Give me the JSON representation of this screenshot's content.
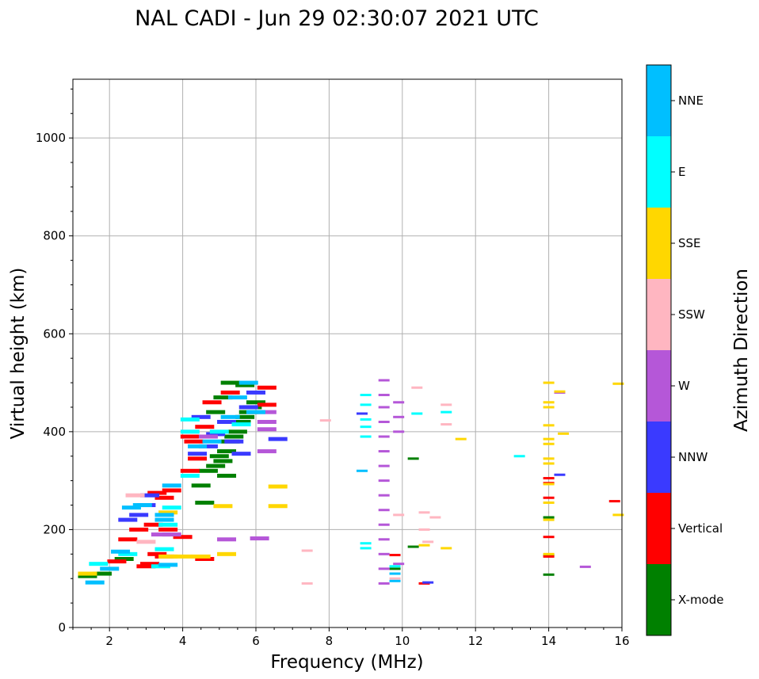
{
  "chart_data": {
    "type": "scatter",
    "title": "NAL CADI - Jun 29 02:30:07 2021 UTC",
    "xlabel": "Frequency (MHz)",
    "ylabel": "Virtual height (km)",
    "xlim": [
      1,
      16
    ],
    "ylim": [
      0,
      1120
    ],
    "x_ticks": [
      2,
      4,
      6,
      8,
      10,
      12,
      14,
      16
    ],
    "y_ticks": [
      0,
      200,
      400,
      600,
      800,
      1000
    ],
    "grid": true,
    "colorbar": {
      "label": "Azimuth Direction",
      "categories": [
        {
          "name": "X-mode",
          "color": "#008000"
        },
        {
          "name": "Vertical",
          "color": "#ff0000"
        },
        {
          "name": "NNW",
          "color": "#3a3aff"
        },
        {
          "name": "W",
          "color": "#b557d8"
        },
        {
          "name": "SSW",
          "color": "#ffb6c1"
        },
        {
          "name": "SSE",
          "color": "#ffd700"
        },
        {
          "name": "E",
          "color": "#00ffff"
        },
        {
          "name": "NNE",
          "color": "#00bfff"
        }
      ]
    },
    "series": [
      {
        "name": "X-mode",
        "points": [
          [
            1.4,
            105
          ],
          [
            1.8,
            110
          ],
          [
            2.4,
            140
          ],
          [
            4.5,
            290
          ],
          [
            4.7,
            320
          ],
          [
            4.9,
            330
          ],
          [
            5.0,
            350
          ],
          [
            5.1,
            340
          ],
          [
            5.2,
            360
          ],
          [
            5.3,
            380
          ],
          [
            5.4,
            390
          ],
          [
            5.5,
            400
          ],
          [
            5.6,
            420
          ],
          [
            5.7,
            430
          ],
          [
            5.8,
            440
          ],
          [
            5.9,
            450
          ],
          [
            6.0,
            460
          ],
          [
            4.9,
            440
          ],
          [
            5.1,
            470
          ],
          [
            5.3,
            500
          ],
          [
            5.7,
            495
          ],
          [
            10.3,
            345
          ],
          [
            10.3,
            165
          ],
          [
            9.8,
            120
          ],
          [
            14.0,
            225
          ],
          [
            14.0,
            108
          ],
          [
            14.0,
            148
          ],
          [
            4.6,
            255
          ],
          [
            5.2,
            310
          ]
        ]
      },
      {
        "name": "Vertical",
        "points": [
          [
            2.2,
            135
          ],
          [
            2.5,
            180
          ],
          [
            2.8,
            200
          ],
          [
            3.0,
            125
          ],
          [
            3.1,
            130
          ],
          [
            3.2,
            210
          ],
          [
            3.3,
            275
          ],
          [
            3.5,
            145
          ],
          [
            3.5,
            265
          ],
          [
            3.6,
            200
          ],
          [
            3.7,
            280
          ],
          [
            4.2,
            320
          ],
          [
            4.2,
            390
          ],
          [
            4.3,
            380
          ],
          [
            4.4,
            345
          ],
          [
            4.6,
            410
          ],
          [
            4.8,
            460
          ],
          [
            5.3,
            480
          ],
          [
            6.3,
            490
          ],
          [
            6.3,
            455
          ],
          [
            4.6,
            140
          ],
          [
            14.0,
            305
          ],
          [
            14.0,
            265
          ],
          [
            14.0,
            185
          ],
          [
            14.0,
            145
          ],
          [
            14.0,
            295
          ],
          [
            15.8,
            258
          ],
          [
            9.8,
            148
          ],
          [
            10.6,
            90
          ],
          [
            3.3,
            150
          ],
          [
            4.0,
            185
          ]
        ]
      },
      {
        "name": "NNW",
        "points": [
          [
            2.5,
            220
          ],
          [
            2.8,
            230
          ],
          [
            3.0,
            250
          ],
          [
            4.4,
            355
          ],
          [
            4.7,
            370
          ],
          [
            4.9,
            395
          ],
          [
            5.2,
            420
          ],
          [
            5.4,
            380
          ],
          [
            5.6,
            355
          ],
          [
            5.8,
            450
          ],
          [
            6.0,
            480
          ],
          [
            6.6,
            385
          ],
          [
            8.9,
            437
          ],
          [
            10.7,
            92
          ],
          [
            3.1,
            270
          ],
          [
            14.3,
            312
          ],
          [
            4.5,
            430
          ]
        ]
      },
      {
        "name": "W",
        "points": [
          [
            3.4,
            190
          ],
          [
            3.7,
            190
          ],
          [
            6.3,
            440
          ],
          [
            6.3,
            420
          ],
          [
            6.3,
            405
          ],
          [
            6.3,
            360
          ],
          [
            9.5,
            505
          ],
          [
            9.5,
            475
          ],
          [
            9.5,
            450
          ],
          [
            9.5,
            420
          ],
          [
            9.5,
            390
          ],
          [
            9.5,
            360
          ],
          [
            9.5,
            330
          ],
          [
            9.5,
            300
          ],
          [
            9.5,
            270
          ],
          [
            9.5,
            240
          ],
          [
            9.5,
            210
          ],
          [
            9.5,
            180
          ],
          [
            9.5,
            150
          ],
          [
            9.5,
            120
          ],
          [
            9.5,
            90
          ],
          [
            9.9,
            460
          ],
          [
            9.9,
            430
          ],
          [
            9.9,
            400
          ],
          [
            9.9,
            130
          ],
          [
            15.0,
            124
          ],
          [
            5.2,
            180
          ],
          [
            6.1,
            182
          ],
          [
            14.3,
            480
          ],
          [
            4.7,
            390
          ]
        ]
      },
      {
        "name": "SSW",
        "points": [
          [
            2.7,
            270
          ],
          [
            3.0,
            175
          ],
          [
            7.4,
            157
          ],
          [
            7.4,
            90
          ],
          [
            7.9,
            423
          ],
          [
            10.6,
            235
          ],
          [
            10.9,
            225
          ],
          [
            10.7,
            175
          ],
          [
            10.6,
            200
          ],
          [
            11.2,
            455
          ],
          [
            11.2,
            415
          ],
          [
            10.4,
            490
          ],
          [
            9.9,
            230
          ],
          [
            9.8,
            100
          ]
        ]
      },
      {
        "name": "SSE",
        "points": [
          [
            3.6,
            235
          ],
          [
            3.6,
            145
          ],
          [
            4.0,
            145
          ],
          [
            4.5,
            145
          ],
          [
            5.2,
            150
          ],
          [
            5.1,
            248
          ],
          [
            6.6,
            288
          ],
          [
            6.6,
            248
          ],
          [
            10.6,
            168
          ],
          [
            11.2,
            162
          ],
          [
            11.6,
            385
          ],
          [
            14.0,
            500
          ],
          [
            14.0,
            460
          ],
          [
            14.0,
            450
          ],
          [
            14.0,
            413
          ],
          [
            14.0,
            385
          ],
          [
            14.0,
            375
          ],
          [
            14.0,
            345
          ],
          [
            14.0,
            335
          ],
          [
            14.0,
            293
          ],
          [
            14.0,
            255
          ],
          [
            14.0,
            220
          ],
          [
            14.0,
            150
          ],
          [
            14.4,
            396
          ],
          [
            14.3,
            482
          ],
          [
            15.9,
            498
          ],
          [
            15.9,
            230
          ],
          [
            1.4,
            110
          ]
        ]
      },
      {
        "name": "E",
        "points": [
          [
            1.7,
            130
          ],
          [
            2.5,
            150
          ],
          [
            3.5,
            160
          ],
          [
            3.6,
            210
          ],
          [
            3.7,
            245
          ],
          [
            4.2,
            310
          ],
          [
            4.2,
            425
          ],
          [
            4.2,
            400
          ],
          [
            5.0,
            400
          ],
          [
            5.6,
            415
          ],
          [
            9.0,
            475
          ],
          [
            9.0,
            455
          ],
          [
            9.0,
            425
          ],
          [
            9.0,
            410
          ],
          [
            9.0,
            390
          ],
          [
            9.0,
            172
          ],
          [
            9.0,
            162
          ],
          [
            10.4,
            437
          ],
          [
            11.2,
            440
          ],
          [
            13.2,
            350
          ],
          [
            9.8,
            125
          ],
          [
            3.4,
            125
          ]
        ]
      },
      {
        "name": "NNE",
        "points": [
          [
            1.6,
            92
          ],
          [
            2.0,
            120
          ],
          [
            2.3,
            155
          ],
          [
            2.6,
            245
          ],
          [
            2.9,
            250
          ],
          [
            3.5,
            230
          ],
          [
            3.5,
            220
          ],
          [
            3.6,
            128
          ],
          [
            4.4,
            370
          ],
          [
            4.8,
            380
          ],
          [
            5.3,
            430
          ],
          [
            5.5,
            470
          ],
          [
            5.8,
            500
          ],
          [
            6.0,
            440
          ],
          [
            8.9,
            320
          ],
          [
            9.8,
            110
          ],
          [
            9.8,
            95
          ],
          [
            3.7,
            290
          ]
        ]
      }
    ]
  }
}
